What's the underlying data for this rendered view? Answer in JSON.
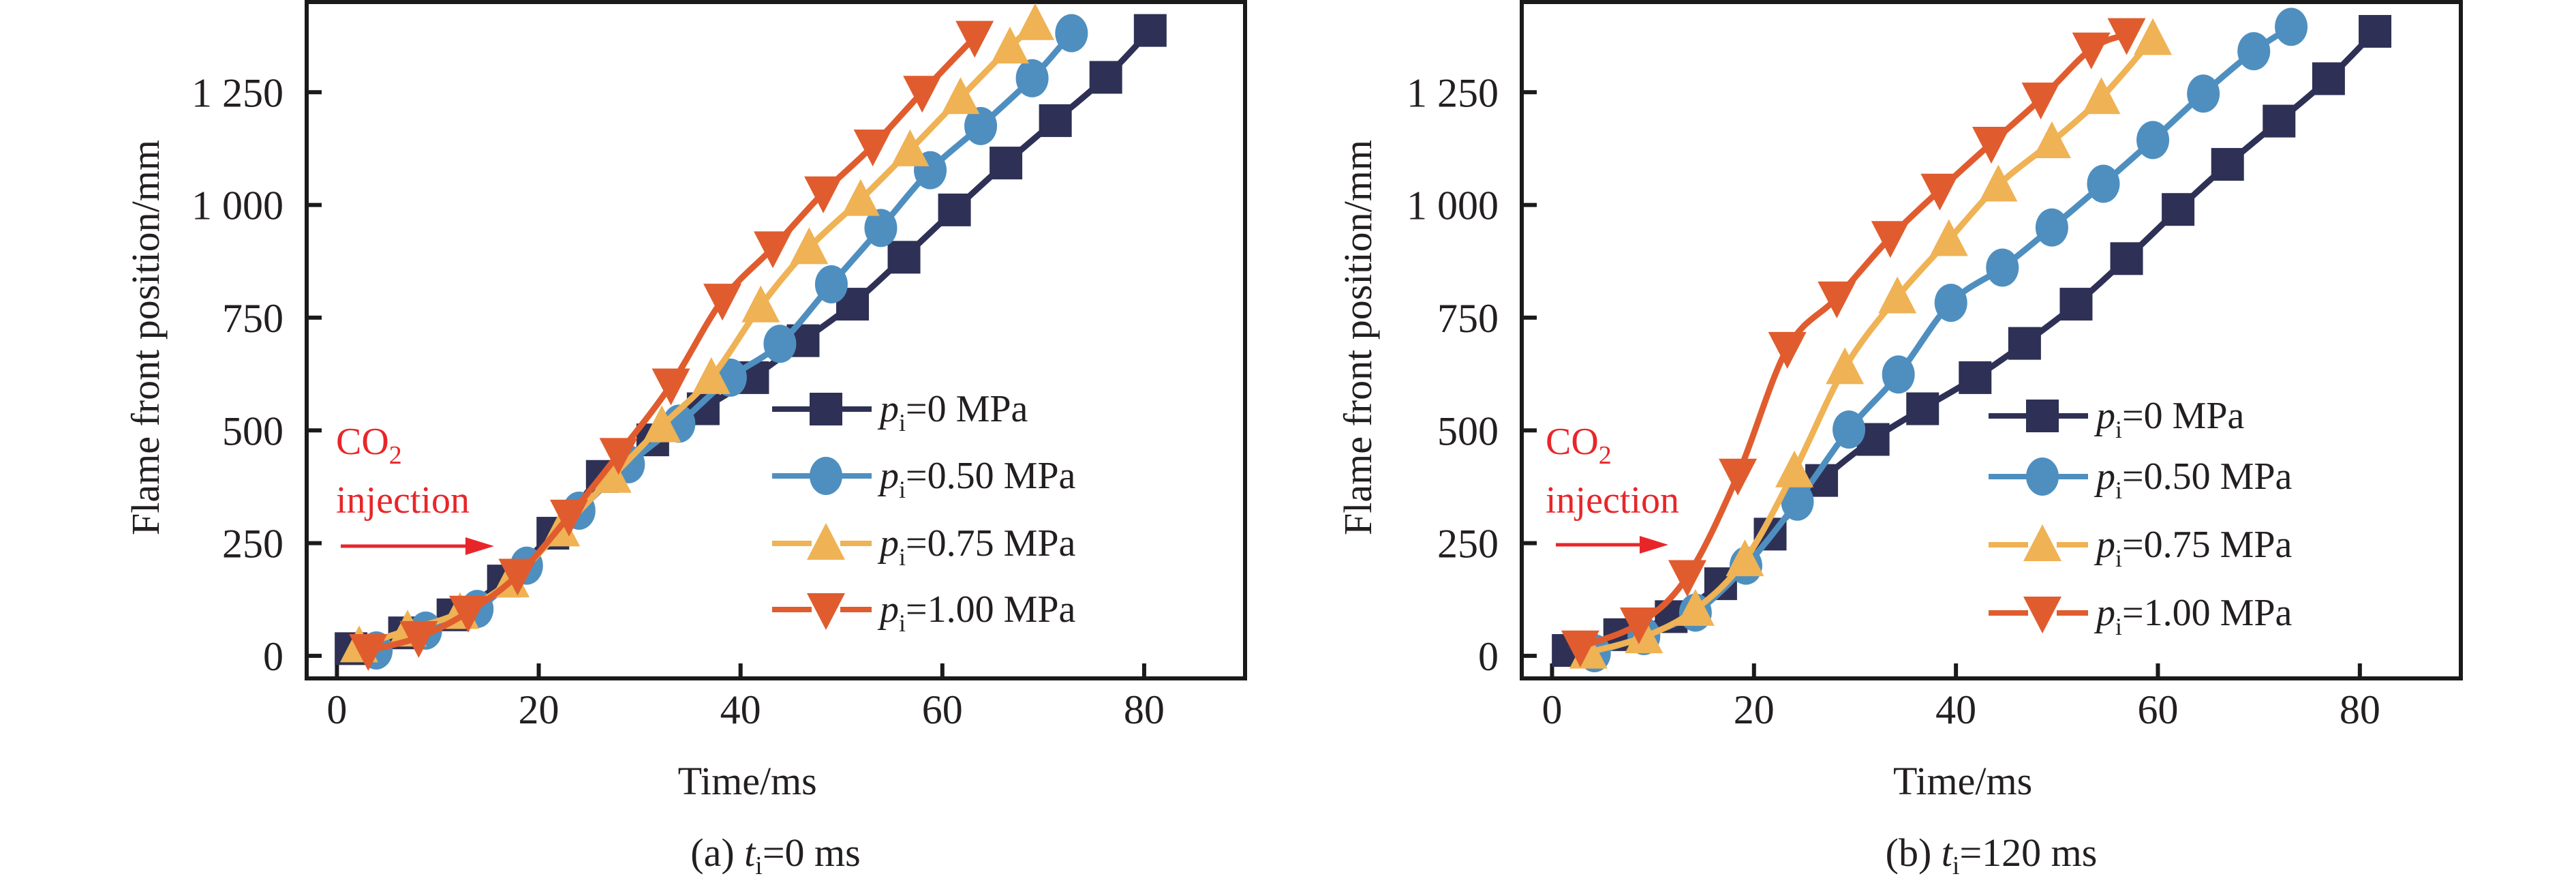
{
  "figure": {
    "panels_count": 2
  },
  "chart_data": [
    {
      "type": "line",
      "panel_id": "a",
      "caption": {
        "prefix": "(a) ",
        "var": "t",
        "sub": "i",
        "suffix": "=0 ms"
      },
      "title": "",
      "xlabel": "Time/ms",
      "ylabel": "Flame front position/mm",
      "xlim": [
        -3,
        90
      ],
      "ylim": [
        -50,
        1450
      ],
      "xticks": [
        0,
        20,
        40,
        60,
        80
      ],
      "xtick_labels": [
        "0",
        "20",
        "40",
        "60",
        "80"
      ],
      "yticks": [
        0,
        250,
        500,
        750,
        1000,
        1250
      ],
      "ytick_labels": [
        "0",
        "250",
        "500",
        "750",
        "1 000",
        "1 250"
      ],
      "grid": false,
      "legend_position": "center-right",
      "annotation": {
        "line1": "CO",
        "line1_sub": "2",
        "line2": "injection",
        "color": "#e8262a",
        "arrow": "right"
      },
      "series": [
        {
          "name": "p_i=0 MPa",
          "label_var": "p",
          "label_sub": "i",
          "label_value": "=0 MPa",
          "color": "#2e3155",
          "marker": "square",
          "x": [
            1.4,
            6.7,
            11.5,
            16.5,
            21.4,
            26.3,
            31.3,
            36.3,
            41.2,
            46.2,
            51.1,
            56.2,
            61.2,
            66.3,
            71.2,
            76.2,
            80.6
          ],
          "y": [
            16,
            51,
            91,
            166,
            272,
            398,
            479,
            548,
            617,
            699,
            780,
            884,
            989,
            1093,
            1187,
            1283,
            1387
          ]
        },
        {
          "name": "p_i=0.50 MPa",
          "label_var": "p",
          "label_sub": "i",
          "label_value": "=0.50 MPa",
          "color": "#4e8fc0",
          "marker": "circle",
          "x": [
            3.9,
            8.8,
            13.9,
            18.8,
            24.0,
            28.9,
            33.9,
            39.0,
            43.9,
            49.0,
            53.9,
            58.8,
            63.8,
            68.9,
            72.8
          ],
          "y": [
            12,
            56,
            104,
            200,
            322,
            425,
            515,
            617,
            692,
            824,
            949,
            1077,
            1175,
            1281,
            1381
          ]
        },
        {
          "name": "p_i=0.75 MPa",
          "label_var": "p",
          "label_sub": "i",
          "label_value": "=0.75 MPa",
          "color": "#efb254",
          "marker": "triangle-up",
          "x": [
            2.2,
            7.0,
            12.2,
            17.2,
            22.2,
            27.3,
            32.2,
            37.1,
            42.0,
            46.8,
            51.9,
            56.8,
            61.8,
            66.7,
            69.2
          ],
          "y": [
            22,
            57,
            96,
            166,
            279,
            398,
            510,
            617,
            776,
            905,
            1012,
            1122,
            1238,
            1350,
            1402
          ]
        },
        {
          "name": "p_i=1.00 MPa",
          "label_var": "p",
          "label_sub": "i",
          "label_value": "=1.00 MPa",
          "color": "#e05c2e",
          "marker": "triangle-down",
          "x": [
            3.1,
            8.1,
            13.0,
            17.9,
            23.0,
            27.9,
            33.1,
            38.2,
            43.2,
            48.2,
            53.1,
            58.0,
            63.2
          ],
          "y": [
            12,
            41,
            97,
            179,
            310,
            447,
            601,
            789,
            905,
            1027,
            1131,
            1250,
            1372
          ]
        }
      ]
    },
    {
      "type": "line",
      "panel_id": "b",
      "caption": {
        "prefix": "(b) ",
        "var": "t",
        "sub": "i",
        "suffix": "=120 ms"
      },
      "title": "",
      "xlabel": "Time/ms",
      "ylabel": "Flame front position/mm",
      "xlim": [
        -3,
        90
      ],
      "ylim": [
        -50,
        1450
      ],
      "xticks": [
        0,
        20,
        40,
        60,
        80
      ],
      "xtick_labels": [
        "0",
        "20",
        "40",
        "60",
        "80"
      ],
      "yticks": [
        0,
        250,
        500,
        750,
        1000,
        1250
      ],
      "ytick_labels": [
        "0",
        "250",
        "500",
        "750",
        "1 000",
        "1 250"
      ],
      "grid": false,
      "legend_position": "center-right",
      "annotation": {
        "line1": "CO",
        "line1_sub": "2",
        "line2": "injection",
        "color": "#e8262a",
        "arrow": "right"
      },
      "series": [
        {
          "name": "p_i=0 MPa",
          "label_var": "p",
          "label_sub": "i",
          "label_value": "=0 MPa",
          "color": "#2e3155",
          "marker": "square",
          "x": [
            1.6,
            6.7,
            11.8,
            16.7,
            21.6,
            26.7,
            31.8,
            36.7,
            41.9,
            46.8,
            51.9,
            56.9,
            62.0,
            66.9,
            72.0,
            76.9,
            81.5
          ],
          "y": [
            12,
            47,
            87,
            160,
            270,
            389,
            480,
            548,
            617,
            693,
            780,
            881,
            990,
            1090,
            1186,
            1280,
            1385
          ]
        },
        {
          "name": "p_i=0.50 MPa",
          "label_var": "p",
          "label_sub": "i",
          "label_value": "=0.50 MPa",
          "color": "#4e8fc0",
          "marker": "circle",
          "x": [
            4.2,
            9.1,
            14.2,
            19.2,
            24.3,
            29.4,
            34.3,
            39.5,
            44.6,
            49.5,
            54.6,
            59.5,
            64.5,
            69.5,
            73.2
          ],
          "y": [
            6,
            44,
            96,
            200,
            342,
            502,
            624,
            783,
            861,
            950,
            1047,
            1144,
            1247,
            1341,
            1395
          ]
        },
        {
          "name": "p_i=0.75 MPa",
          "label_var": "p",
          "label_sub": "i",
          "label_value": "=0.75 MPa",
          "color": "#efb254",
          "marker": "triangle-up",
          "x": [
            3.6,
            9.1,
            14.2,
            19.1,
            24.0,
            29.0,
            34.2,
            39.3,
            44.2,
            49.5,
            54.4,
            59.5
          ],
          "y": [
            8,
            42,
            103,
            213,
            410,
            639,
            796,
            923,
            1044,
            1140,
            1238,
            1369
          ]
        },
        {
          "name": "p_i=1.00 MPa",
          "label_var": "p",
          "label_sub": "i",
          "label_value": "=1.00 MPa",
          "color": "#e05c2e",
          "marker": "triangle-down",
          "x": [
            2.8,
            8.6,
            13.4,
            18.4,
            23.3,
            28.2,
            33.5,
            38.4,
            43.5,
            48.4,
            53.4,
            56.9
          ],
          "y": [
            20,
            71,
            176,
            401,
            682,
            794,
            928,
            1033,
            1137,
            1235,
            1346,
            1378
          ]
        }
      ]
    }
  ]
}
